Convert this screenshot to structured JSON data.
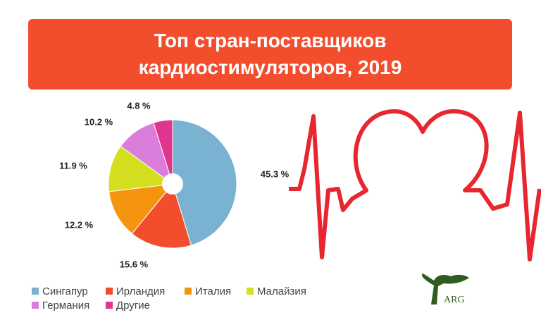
{
  "chart_data": {
    "type": "pie",
    "title": "Топ стран-поставщиков кардиостимуляторов, 2019",
    "categories": [
      "Сингапур",
      "Ирландия",
      "Италия",
      "Малайзия",
      "Германия",
      "Другие"
    ],
    "values": [
      45.3,
      15.6,
      12.2,
      11.9,
      10.2,
      4.8
    ],
    "value_labels": [
      "45.3 %",
      "15.6 %",
      "12.2 %",
      "11.9 %",
      "10.2 %",
      "4.8 %"
    ],
    "colors": [
      "#7ab3d1",
      "#f24e2e",
      "#f5950f",
      "#d4df1f",
      "#da7ddb",
      "#e0358f"
    ],
    "logo_text": "ARG"
  }
}
